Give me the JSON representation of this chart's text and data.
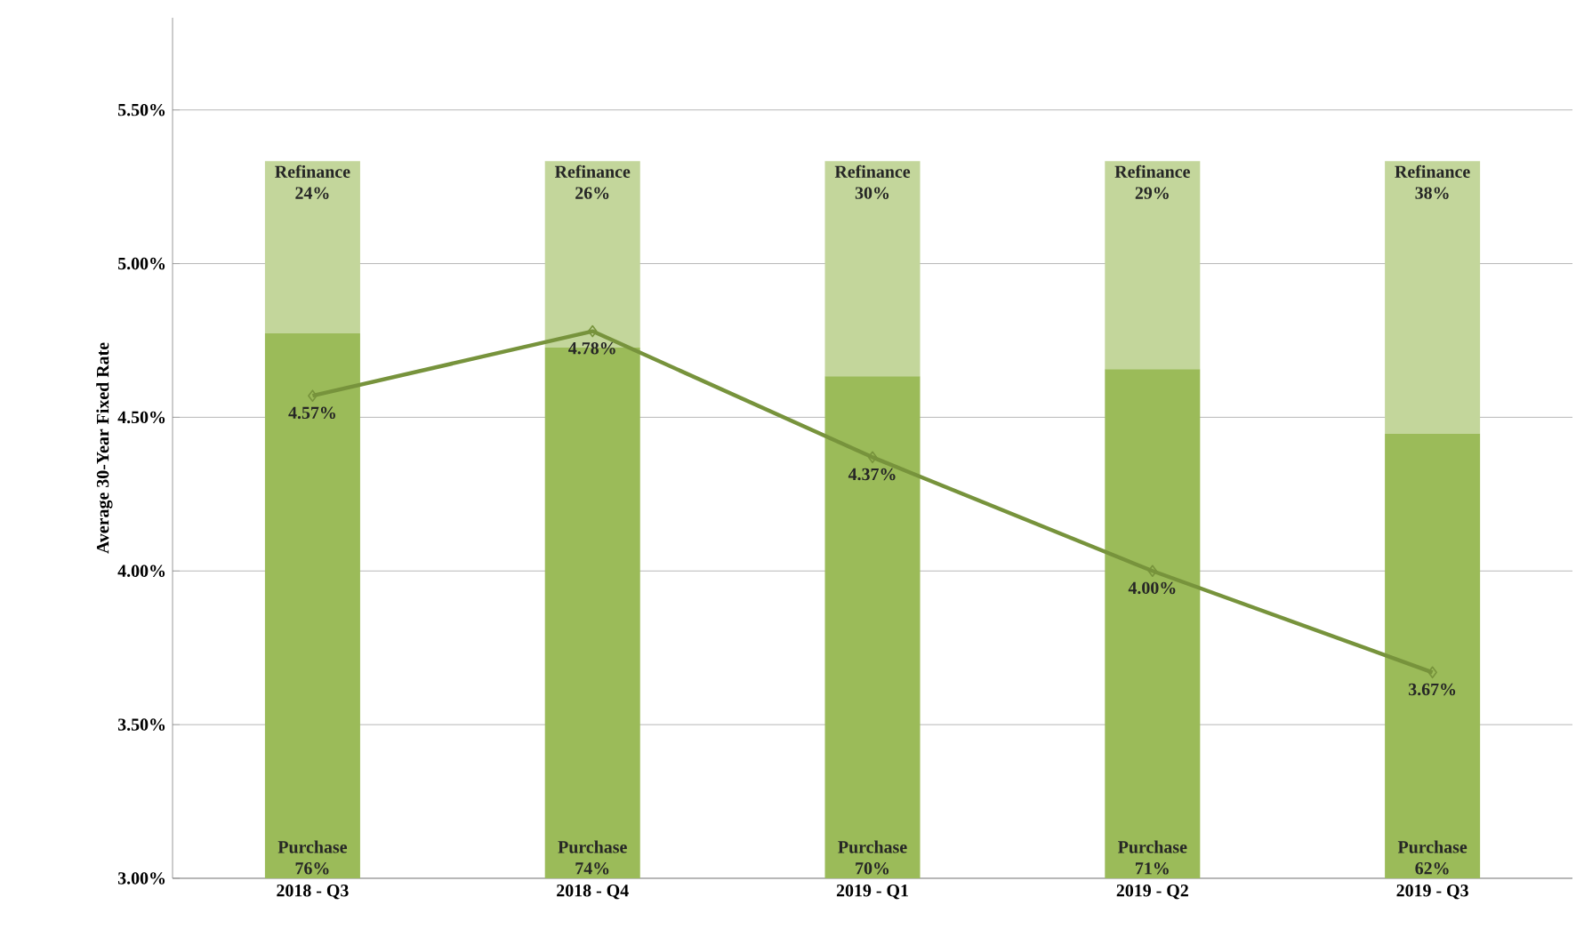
{
  "chart_data": {
    "type": "bar",
    "stacked": true,
    "ylabel": "Average 30-Year Fixed Rate",
    "categories": [
      "2018 - Q3",
      "2018 - Q4",
      "2019 - Q1",
      "2019 - Q2",
      "2019 - Q3"
    ],
    "ylim": [
      3,
      5.8
    ],
    "yticks": [
      {
        "value": 3,
        "label": "3.00%"
      },
      {
        "value": 3.5,
        "label": "3.50%"
      },
      {
        "value": 4,
        "label": "4.00%"
      },
      {
        "value": 4.5,
        "label": "4.50%"
      },
      {
        "value": 5,
        "label": "5.00%"
      },
      {
        "value": 5.5,
        "label": "5.50%"
      }
    ],
    "y2lim": [
      0,
      120
    ],
    "grid": "y",
    "marker": "diamond",
    "series": [
      {
        "name": "Purchase",
        "axis": "y2",
        "color": "#9bbb59",
        "values": [
          76,
          74,
          70,
          71,
          62
        ],
        "value_labels": [
          "76%",
          "74%",
          "70%",
          "71%",
          "62%"
        ]
      },
      {
        "name": "Refinance",
        "axis": "y2",
        "color": "#c3d69b",
        "values": [
          24,
          26,
          30,
          29,
          38
        ],
        "value_labels": [
          "24%",
          "26%",
          "30%",
          "29%",
          "38%"
        ]
      },
      {
        "type": "line",
        "axis": "y",
        "color": "#77933c",
        "values": [
          4.57,
          4.78,
          4.37,
          4.0,
          3.67
        ],
        "value_labels": [
          "4.57%",
          "4.78%",
          "4.37%",
          "4.00%",
          "3.67%"
        ]
      }
    ]
  }
}
